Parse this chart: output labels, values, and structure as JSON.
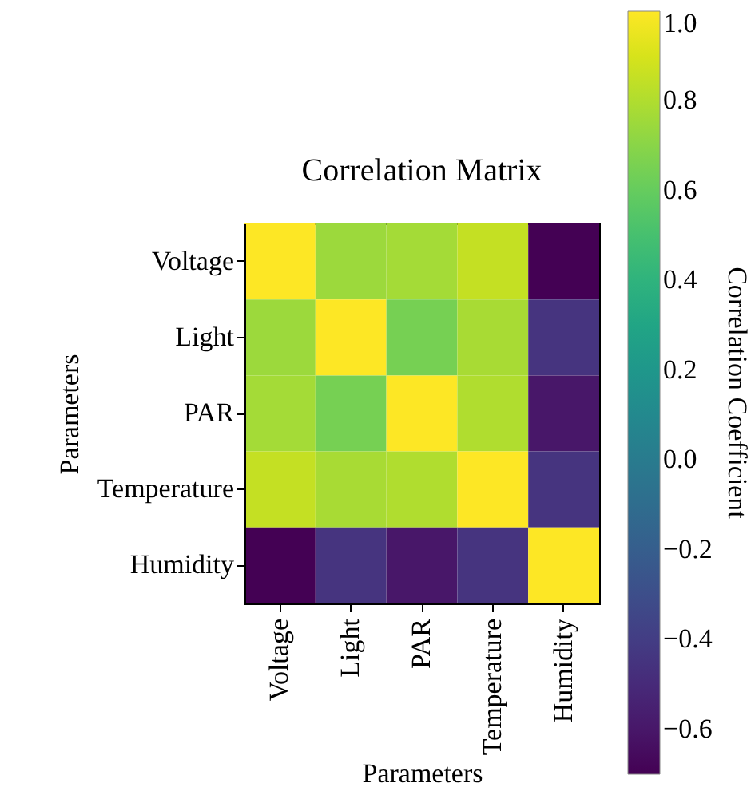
{
  "chart_data": {
    "type": "heatmap",
    "title": "Correlation Matrix",
    "xlabel": "Parameters",
    "ylabel": "Parameters",
    "clabel": "Correlation Coefficient",
    "categories": [
      "Voltage",
      "Light",
      "PAR",
      "Temperature",
      "Humidity"
    ],
    "y_categories": [
      "Voltage",
      "Light",
      "PAR",
      "Temperature",
      "Humidity"
    ],
    "cells": [
      [
        1.0,
        0.75,
        0.77,
        0.85,
        -0.7
      ],
      [
        0.75,
        1.0,
        0.65,
        0.78,
        -0.45
      ],
      [
        0.77,
        0.65,
        1.0,
        0.8,
        -0.6
      ],
      [
        0.85,
        0.78,
        0.8,
        1.0,
        -0.45
      ],
      [
        -0.7,
        -0.45,
        -0.6,
        -0.45,
        1.0
      ]
    ],
    "clim": [
      -0.7,
      1.0
    ],
    "cticks": [
      {
        "value": 1.0,
        "label": "1.0"
      },
      {
        "value": 0.8,
        "label": "0.8"
      },
      {
        "value": 0.6,
        "label": "0.6"
      },
      {
        "value": 0.4,
        "label": "0.4"
      },
      {
        "value": 0.2,
        "label": "0.2"
      },
      {
        "value": 0.0,
        "label": "0.0"
      },
      {
        "value": -0.2,
        "label": "−0.2"
      },
      {
        "value": -0.4,
        "label": "−0.4"
      },
      {
        "value": -0.6,
        "label": "−0.6"
      }
    ]
  }
}
